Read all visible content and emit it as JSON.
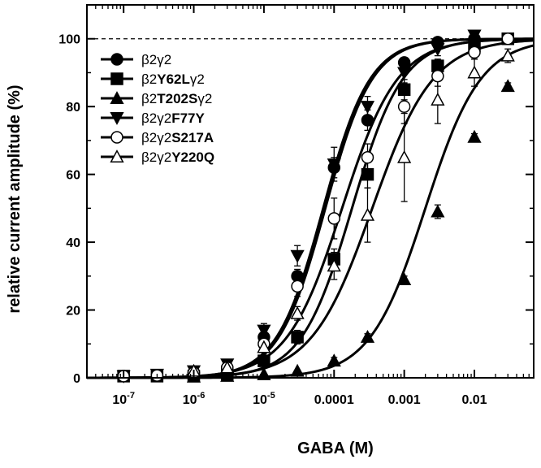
{
  "chart_data": {
    "type": "scatter",
    "xlabel": "GABA (M)",
    "ylabel": "relative current amplitude (%)",
    "xscale": "log",
    "xlim": [
      3e-08,
      0.07
    ],
    "ylim": [
      0,
      110
    ],
    "x_tick_labels": [
      {
        "x": 1e-07,
        "base": "10",
        "exp": "-7"
      },
      {
        "x": 1e-06,
        "base": "10",
        "exp": "-6"
      },
      {
        "x": 1e-05,
        "base": "10",
        "exp": "-5"
      },
      {
        "x": 0.0001,
        "text": "0.0001"
      },
      {
        "x": 0.001,
        "text": "0.001"
      },
      {
        "x": 0.01,
        "text": "0.01"
      }
    ],
    "y_ticks": [
      0,
      20,
      40,
      60,
      80,
      100
    ],
    "reference_line": 100,
    "legend_position": "top-left",
    "series": [
      {
        "name": [
          "β2γ2"
        ],
        "marker": "circle-filled",
        "ec50": 7.5e-05,
        "hill": 1.3,
        "x": [
          1e-07,
          3e-07,
          1e-06,
          3e-06,
          1e-05,
          3e-05,
          0.0001,
          0.0003,
          0.001,
          0.003,
          0.01,
          0.03
        ],
        "y": [
          0.5,
          0.7,
          1.5,
          3,
          12,
          30,
          62,
          76,
          93,
          99,
          100,
          100
        ],
        "err": [
          0,
          0,
          0,
          0,
          1,
          2,
          3,
          3,
          1,
          1,
          1,
          0
        ]
      },
      {
        "name": [
          "β2",
          "Y62L",
          "γ2"
        ],
        "marker": "square-filled",
        "ec50": 0.00018,
        "hill": 1.2,
        "x": [
          1e-07,
          3e-07,
          1e-06,
          3e-06,
          1e-05,
          3e-05,
          0.0001,
          0.0003,
          0.001,
          0.003,
          0.01,
          0.03
        ],
        "y": [
          0.5,
          0.5,
          0.5,
          1,
          5,
          12,
          35,
          60,
          85,
          92,
          98,
          100
        ],
        "err": [
          0,
          0,
          0,
          0,
          1,
          2,
          3,
          4,
          3,
          2,
          1,
          0
        ]
      },
      {
        "name": [
          "β2",
          "T202S",
          "γ2"
        ],
        "marker": "triangle-up-filled",
        "ec50": 0.002,
        "hill": 1.1,
        "x": [
          1e-06,
          3e-06,
          1e-05,
          3e-05,
          0.0001,
          0.0003,
          0.001,
          0.003,
          0.01,
          0.03
        ],
        "y": [
          0.3,
          0.5,
          1,
          2,
          5,
          12,
          29,
          49,
          71,
          86
        ],
        "err": [
          0,
          0,
          0,
          0,
          1,
          1,
          1,
          2,
          1,
          1
        ]
      },
      {
        "name": [
          "β2γ2",
          "F77Y"
        ],
        "marker": "triangle-down-filled",
        "ec50": 7e-05,
        "hill": 1.3,
        "x": [
          1e-07,
          3e-07,
          1e-06,
          3e-06,
          1e-05,
          3e-05,
          0.0001,
          0.0003,
          0.001,
          0.003,
          0.01
        ],
        "y": [
          0.5,
          1,
          2,
          4,
          14,
          36,
          63,
          80,
          90,
          97,
          101
        ],
        "err": [
          0,
          0,
          0,
          0,
          2,
          3,
          5,
          3,
          3,
          2,
          1
        ]
      },
      {
        "name": [
          "β2γ2",
          "S217A"
        ],
        "marker": "circle-open",
        "ec50": 0.00013,
        "hill": 1.1,
        "x": [
          1e-07,
          3e-07,
          1e-06,
          3e-06,
          1e-05,
          3e-05,
          0.0001,
          0.0003,
          0.001,
          0.003,
          0.01,
          0.03
        ],
        "y": [
          0.5,
          0.7,
          1.5,
          3,
          10,
          27,
          47,
          65,
          80,
          89,
          96,
          100
        ],
        "err": [
          0,
          0,
          0,
          0,
          1,
          3,
          6,
          4,
          5,
          3,
          2,
          0
        ]
      },
      {
        "name": [
          "β2γ2",
          "Y220Q"
        ],
        "marker": "triangle-up-open",
        "ec50": 0.00035,
        "hill": 1.0,
        "x": [
          1e-06,
          3e-06,
          1e-05,
          3e-05,
          0.0001,
          0.0003,
          0.001,
          0.003,
          0.01,
          0.03
        ],
        "y": [
          2,
          3,
          9,
          19,
          33,
          48,
          65,
          82,
          90,
          95
        ],
        "err": [
          0,
          0,
          1,
          2,
          4,
          8,
          13,
          7,
          4,
          2
        ]
      }
    ]
  }
}
